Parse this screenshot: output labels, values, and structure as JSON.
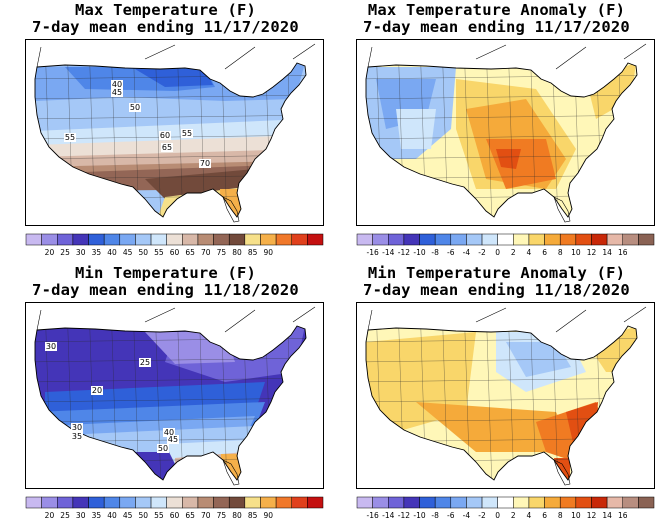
{
  "panels": [
    {
      "title_line1": "Max Temperature (F)",
      "title_line2": "7-day mean ending 11/17/2020",
      "kind": "abs",
      "scale": "abs",
      "contour_labels": [
        "40",
        "45",
        "50",
        "55",
        "60",
        "55",
        "65",
        "70"
      ]
    },
    {
      "title_line1": "Max Temperature Anomaly (F)",
      "title_line2": "7-day mean ending 11/17/2020",
      "kind": "anom_max",
      "scale": "anom",
      "contour_labels": []
    },
    {
      "title_line1": "Min Temperature (F)",
      "title_line2": "7-day mean ending 11/18/2020",
      "kind": "abs_min",
      "scale": "abs",
      "contour_labels": [
        "30",
        "25",
        "20",
        "30",
        "35",
        "40",
        "45",
        "50"
      ]
    },
    {
      "title_line1": "Min Temperature Anomaly (F)",
      "title_line2": "7-day mean ending 11/18/2020",
      "kind": "anom_min",
      "scale": "anom",
      "contour_labels": []
    }
  ],
  "scales": {
    "abs": {
      "colors": [
        "#c8b9f0",
        "#9a8ee6",
        "#6f63d8",
        "#4435b8",
        "#2f60d9",
        "#4f86e8",
        "#7aa8f2",
        "#a5c8f7",
        "#cfe6fb",
        "#ece0d6",
        "#d8b8a8",
        "#b88c74",
        "#936656",
        "#724a3b",
        "#f6e08a",
        "#f5b04a",
        "#f0782a",
        "#e0401c",
        "#c41010"
      ],
      "labels": [
        "20",
        "25",
        "30",
        "35",
        "40",
        "45",
        "50",
        "55",
        "60",
        "65",
        "70",
        "75",
        "80",
        "85",
        "90"
      ]
    },
    "anom": {
      "colors": [
        "#c8b9f0",
        "#9a8ee6",
        "#6f63d8",
        "#4435b8",
        "#2f60d9",
        "#4f86e8",
        "#7aa8f2",
        "#a5c8f7",
        "#cfe6fb",
        "#ffffff",
        "#fff7b8",
        "#f9d66a",
        "#f5aa3a",
        "#f07b22",
        "#e24f12",
        "#c82808",
        "#e6b8a8",
        "#b88e80",
        "#8a6254"
      ],
      "labels": [
        "-16",
        "-14",
        "-12",
        "-10",
        "-8",
        "-6",
        "-4",
        "-2",
        "0",
        "2",
        "4",
        "6",
        "8",
        "10",
        "12",
        "14",
        "16"
      ]
    }
  }
}
